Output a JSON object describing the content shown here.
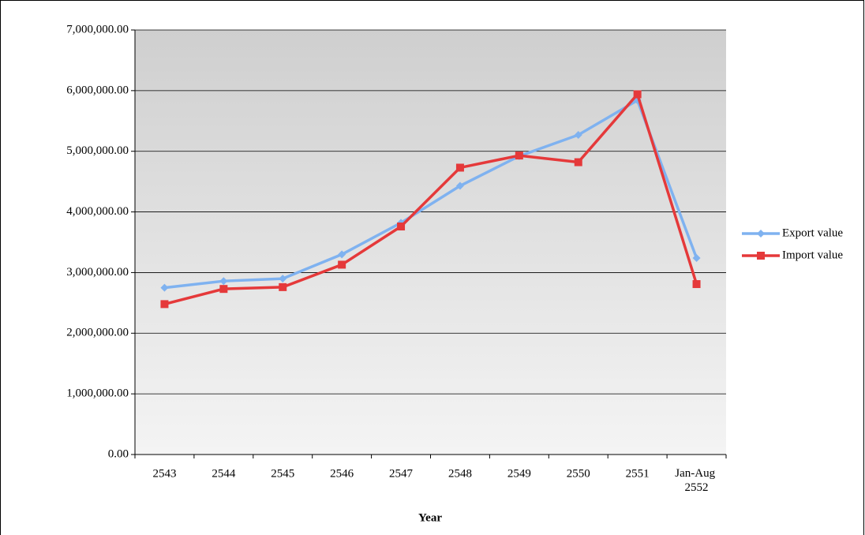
{
  "chart_data": {
    "type": "line",
    "x_label": "Year",
    "categories": [
      "2543",
      "2544",
      "2545",
      "2546",
      "2547",
      "2548",
      "2549",
      "2550",
      "2551",
      "Jan-Aug 2552"
    ],
    "series": [
      {
        "name": "Export value",
        "color": "#7fb2f0",
        "marker": "diamond",
        "values": [
          2750000,
          2860000,
          2900000,
          3300000,
          3820000,
          4430000,
          4920000,
          5270000,
          5840000,
          3240000
        ]
      },
      {
        "name": "Import value",
        "color": "#e5393a",
        "marker": "square",
        "values": [
          2480000,
          2730000,
          2760000,
          3130000,
          3760000,
          4730000,
          4930000,
          4820000,
          5940000,
          2810000
        ]
      }
    ],
    "ylim": [
      0,
      7000000
    ],
    "yticks": [
      {
        "value": 0,
        "label": "0.00"
      },
      {
        "value": 1000000,
        "label": "1,000,000.00"
      },
      {
        "value": 2000000,
        "label": "2,000,000.00"
      },
      {
        "value": 3000000,
        "label": "3,000,000.00"
      },
      {
        "value": 4000000,
        "label": "4,000,000.00"
      },
      {
        "value": 5000000,
        "label": "5,000,000.00"
      },
      {
        "value": 6000000,
        "label": "6,000,000.00"
      },
      {
        "value": 7000000,
        "label": "7,000,000.00"
      }
    ],
    "grid": true,
    "legend": "right"
  }
}
